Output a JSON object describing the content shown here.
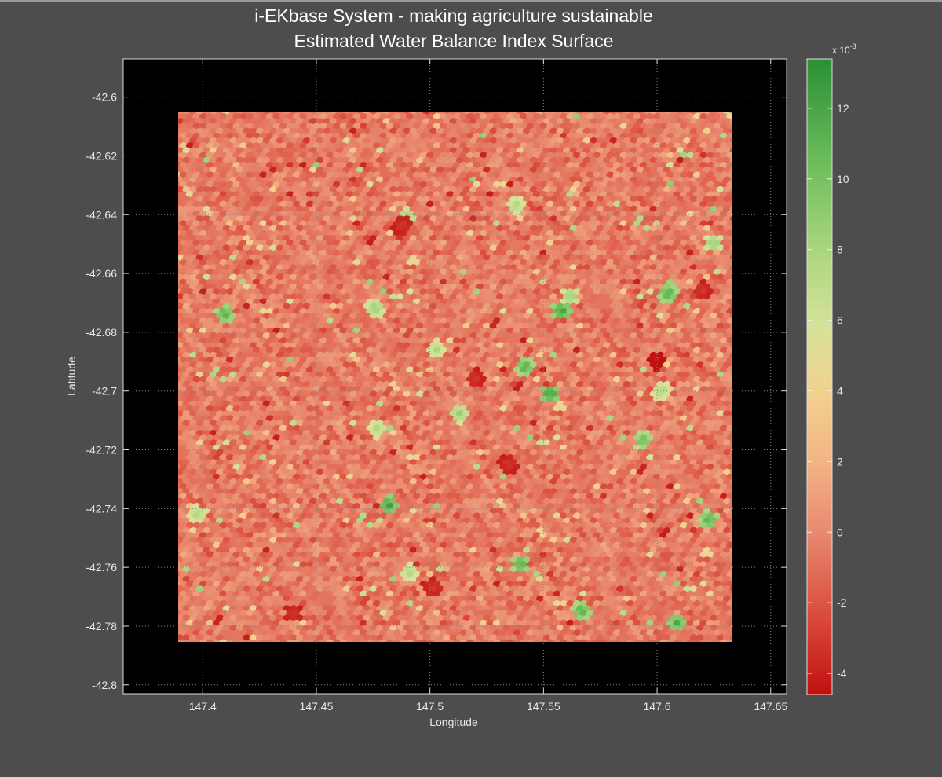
{
  "chart_data": {
    "type": "heatmap",
    "title": [
      "i-EKbase System - making agriculture sustainable",
      "Estimated Water Balance Index Surface"
    ],
    "xlabel": "Longitude",
    "ylabel": "Latitude",
    "xlim": [
      147.365,
      147.657
    ],
    "ylim": [
      -42.803,
      -42.587
    ],
    "xticks": [
      "147.4",
      "147.45",
      "147.5",
      "147.55",
      "147.6",
      "147.65"
    ],
    "xtick_values": [
      147.4,
      147.45,
      147.5,
      147.55,
      147.6,
      147.65
    ],
    "yticks": [
      "-42.6",
      "-42.62",
      "-42.64",
      "-42.66",
      "-42.68",
      "-42.7",
      "-42.72",
      "-42.74",
      "-42.76",
      "-42.78",
      "-42.8"
    ],
    "ytick_values": [
      -42.6,
      -42.62,
      -42.64,
      -42.66,
      -42.68,
      -42.7,
      -42.72,
      -42.74,
      -42.76,
      -42.78,
      -42.8
    ],
    "grid": true,
    "background_color": "#000000",
    "surface_extent": {
      "lon": [
        147.39,
        147.634
      ],
      "lat": [
        -42.785,
        -42.605
      ]
    },
    "surface_description_values": {
      "typical_range": [
        -2,
        2
      ],
      "mean": -0.5,
      "green_hotspots": [
        {
          "lon": 147.41,
          "lat": -42.674,
          "value": 12
        },
        {
          "lon": 147.476,
          "lat": -42.672,
          "value": 9
        },
        {
          "lon": 147.49,
          "lat": -42.641,
          "value": 9
        },
        {
          "lon": 147.503,
          "lat": -42.686,
          "value": 8
        },
        {
          "lon": 147.513,
          "lat": -42.708,
          "value": 9
        },
        {
          "lon": 147.538,
          "lat": -42.637,
          "value": 8
        },
        {
          "lon": 147.542,
          "lat": -42.692,
          "value": 12
        },
        {
          "lon": 147.553,
          "lat": -42.701,
          "value": 13
        },
        {
          "lon": 147.558,
          "lat": -42.673,
          "value": 13
        },
        {
          "lon": 147.562,
          "lat": -42.668,
          "value": 9
        },
        {
          "lon": 147.605,
          "lat": -42.667,
          "value": 12
        },
        {
          "lon": 147.482,
          "lat": -42.739,
          "value": 13
        },
        {
          "lon": 147.477,
          "lat": -42.713,
          "value": 8
        },
        {
          "lon": 147.594,
          "lat": -42.717,
          "value": 11
        },
        {
          "lon": 147.623,
          "lat": -42.744,
          "value": 12
        },
        {
          "lon": 147.54,
          "lat": -42.759,
          "value": 12
        },
        {
          "lon": 147.567,
          "lat": -42.775,
          "value": 12
        },
        {
          "lon": 147.609,
          "lat": -42.779,
          "value": 12
        },
        {
          "lon": 147.491,
          "lat": -42.762,
          "value": 8
        },
        {
          "lon": 147.625,
          "lat": -42.65,
          "value": 9
        },
        {
          "lon": 147.602,
          "lat": -42.7,
          "value": 8
        },
        {
          "lon": 147.398,
          "lat": -42.742,
          "value": 8
        }
      ],
      "red_hotspots": [
        {
          "lon": 147.535,
          "lat": -42.725,
          "value": -3
        },
        {
          "lon": 147.44,
          "lat": -42.776,
          "value": -3
        },
        {
          "lon": 147.52,
          "lat": -42.696,
          "value": -3
        },
        {
          "lon": 147.6,
          "lat": -42.69,
          "value": -4
        },
        {
          "lon": 147.62,
          "lat": -42.666,
          "value": -3
        },
        {
          "lon": 147.488,
          "lat": -42.644,
          "value": -3
        },
        {
          "lon": 147.502,
          "lat": -42.767,
          "value": -3
        }
      ]
    },
    "colorbar": {
      "multiplier": "x 10",
      "exponent": "-3",
      "min": -4.6,
      "max": 13.4,
      "ticks": [
        "12",
        "10",
        "8",
        "6",
        "4",
        "2",
        "0",
        "-2",
        "-4"
      ],
      "tick_values": [
        12,
        10,
        8,
        6,
        4,
        2,
        0,
        -2,
        -4
      ],
      "colormap": [
        "#c01010",
        "#d94a3a",
        "#e8876e",
        "#f2b283",
        "#f3d08e",
        "#d6e29a",
        "#a9d57f",
        "#6bbc5a",
        "#2a8f34"
      ]
    }
  }
}
